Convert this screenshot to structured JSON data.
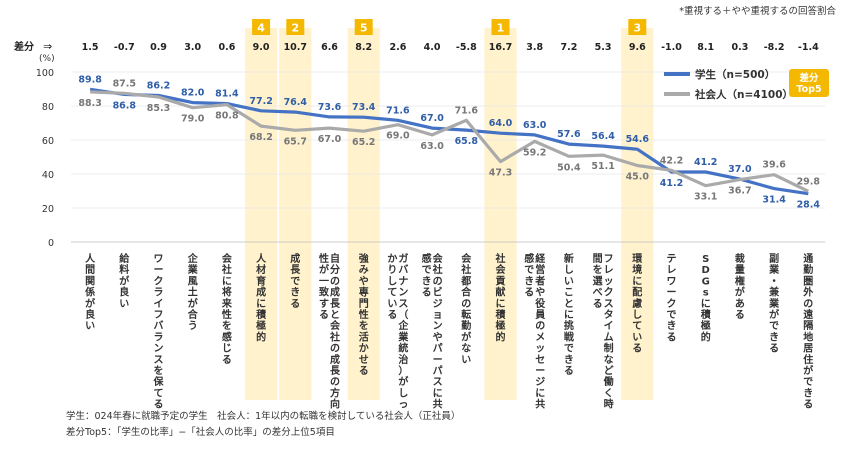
{
  "note_top": "*重視する＋やや重視するの回答割合",
  "footnotes": [
    "学生：024年春に就職予定の学生　社会人：1年以内の転職を検討している社会人（正社員）",
    "差分Top5：「学生の比率」−「社会人の比率」の差分上位5項目"
  ],
  "colors": {
    "student": "#4472c4",
    "worker": "#aaaaaa",
    "highlight": "#fff2cc",
    "badge": "#f5b800"
  },
  "chart_data": {
    "type": "line",
    "diff_label": "差分",
    "diff_arrow": "⇒",
    "unit_label": "(%)",
    "top5_badge": "差分\nTop5",
    "ylim": [
      0,
      100
    ],
    "yticks": [
      0,
      20,
      40,
      60,
      80,
      100
    ],
    "categories": [
      "人間関係が良い",
      "給料が良い",
      "ワークライフバランスを保てる",
      "企業風土が合う",
      "会社に将来性を感じる",
      "人材育成に積極的",
      "成長できる",
      "自分の成長と会社の成長の方向性が一致する",
      "強みや専門性を活かせる",
      "ガバナンス（企業統治）がしっかりしている",
      "会社のビジョンやパーパスに共感できる",
      "会社都合の転勤がない",
      "社会貢献に積極的",
      "経営者や役員のメッセージに共感できる",
      "新しいことに挑戦できる",
      "フレックスタイム制など働く時間を選べる",
      "環境に配慮している",
      "テレワークできる",
      "SDGsに積極的",
      "裁量権がある",
      "副業・兼業ができる",
      "通勤圏外の遠隔地居住ができる"
    ],
    "diffs": [
      "1.5",
      "-0.7",
      "0.9",
      "3.0",
      "0.6",
      "9.0",
      "10.7",
      "6.6",
      "8.2",
      "2.6",
      "4.0",
      "-5.8",
      "16.7",
      "3.8",
      "7.2",
      "5.3",
      "9.6",
      "-1.0",
      "8.1",
      "0.3",
      "-8.2",
      "-1.4"
    ],
    "top5_ranks": [
      null,
      null,
      null,
      null,
      null,
      4,
      2,
      null,
      5,
      null,
      null,
      null,
      1,
      null,
      null,
      null,
      3,
      null,
      null,
      null,
      null,
      null
    ],
    "series": [
      {
        "name": "学生（n=500）",
        "key": "student",
        "values": [
          89.8,
          86.8,
          86.2,
          82.0,
          81.4,
          77.2,
          76.4,
          73.6,
          73.4,
          71.6,
          67.0,
          65.8,
          64.0,
          63.0,
          57.6,
          56.4,
          54.6,
          41.2,
          41.2,
          37.0,
          31.4,
          28.4
        ]
      },
      {
        "name": "社会人（n=4100）",
        "key": "worker",
        "values": [
          88.3,
          87.5,
          85.3,
          79.0,
          80.8,
          68.2,
          65.7,
          67.0,
          65.2,
          69.0,
          63.0,
          71.6,
          47.3,
          59.2,
          50.4,
          51.1,
          45.0,
          42.2,
          33.1,
          36.7,
          39.6,
          29.8
        ]
      }
    ]
  }
}
